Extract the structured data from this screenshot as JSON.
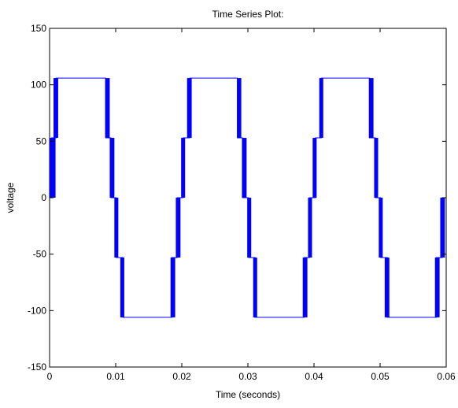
{
  "chart_data": {
    "type": "line",
    "title": "Time Series Plot:",
    "xlabel": "Time (seconds)",
    "ylabel": "voltage",
    "xlim": [
      0,
      0.06
    ],
    "ylim": [
      -150,
      150
    ],
    "xticks": [
      0,
      0.01,
      0.02,
      0.03,
      0.04,
      0.05,
      0.06
    ],
    "xtick_labels": [
      "0",
      "0.01",
      "0.02",
      "0.03",
      "0.04",
      "0.05",
      "0.06"
    ],
    "yticks": [
      -150,
      -100,
      -50,
      0,
      50,
      100,
      150
    ],
    "ytick_labels": [
      "-150",
      "-100",
      "-50",
      "0",
      "50",
      "100",
      "150"
    ],
    "grid": false,
    "line_color": "#0000ff",
    "series": [
      {
        "name": "",
        "x": [
          0,
          0.0003,
          0.0003,
          0.001,
          0.001,
          0.0085,
          0.0085,
          0.0093,
          0.0093,
          0.0101,
          0.0101,
          0.0111,
          0.0111,
          0.0185,
          0.0185,
          0.0193,
          0.0193,
          0.0202,
          0.0202,
          0.0212,
          0.0212,
          0.0284,
          0.0284,
          0.0292,
          0.0292,
          0.0301,
          0.0301,
          0.0311,
          0.0311,
          0.0385,
          0.0385,
          0.0393,
          0.0393,
          0.0402,
          0.0402,
          0.0411,
          0.0411,
          0.0484,
          0.0484,
          0.0493,
          0.0493,
          0.0501,
          0.0501,
          0.0511,
          0.0511,
          0.0585,
          0.0585,
          0.0594,
          0.0594,
          0.06
        ],
        "y": [
          0,
          0,
          53,
          53,
          106,
          106,
          53,
          53,
          0,
          0,
          -53,
          -53,
          -106,
          -106,
          -53,
          -53,
          0,
          0,
          53,
          53,
          106,
          106,
          53,
          53,
          0,
          0,
          -53,
          -53,
          -106,
          -106,
          -53,
          -53,
          0,
          0,
          53,
          53,
          106,
          106,
          53,
          53,
          0,
          0,
          -53,
          -53,
          -106,
          -106,
          -53,
          -53,
          0,
          0
        ]
      }
    ],
    "switching_bands": [
      {
        "t0": 0.0,
        "t1": 0.0009,
        "v0": 0,
        "v1": 53
      },
      {
        "t0": 0.0006,
        "t1": 0.0013,
        "v0": 53,
        "v1": 106
      },
      {
        "t0": 0.0084,
        "t1": 0.0091,
        "v0": 106,
        "v1": 53
      },
      {
        "t0": 0.0091,
        "t1": 0.0098,
        "v0": 53,
        "v1": 0
      },
      {
        "t0": 0.0098,
        "t1": 0.0104,
        "v0": 0,
        "v1": -53
      },
      {
        "t0": 0.0107,
        "t1": 0.0113,
        "v0": -53,
        "v1": -106
      },
      {
        "t0": 0.0183,
        "t1": 0.019,
        "v0": -106,
        "v1": -53
      },
      {
        "t0": 0.0191,
        "t1": 0.0198,
        "v0": -53,
        "v1": 0
      },
      {
        "t0": 0.0199,
        "t1": 0.0205,
        "v0": 0,
        "v1": 53
      },
      {
        "t0": 0.0208,
        "t1": 0.0215,
        "v0": 53,
        "v1": 106
      },
      {
        "t0": 0.0284,
        "t1": 0.029,
        "v0": 106,
        "v1": 53
      },
      {
        "t0": 0.0291,
        "t1": 0.0298,
        "v0": 53,
        "v1": 0
      },
      {
        "t0": 0.0299,
        "t1": 0.0305,
        "v0": 0,
        "v1": -53
      },
      {
        "t0": 0.0308,
        "t1": 0.0314,
        "v0": -53,
        "v1": -106
      },
      {
        "t0": 0.0383,
        "t1": 0.039,
        "v0": -106,
        "v1": -53
      },
      {
        "t0": 0.0391,
        "t1": 0.0397,
        "v0": -53,
        "v1": 0
      },
      {
        "t0": 0.0398,
        "t1": 0.0404,
        "v0": 0,
        "v1": 53
      },
      {
        "t0": 0.0408,
        "t1": 0.0414,
        "v0": 53,
        "v1": 106
      },
      {
        "t0": 0.0483,
        "t1": 0.049,
        "v0": 106,
        "v1": 53
      },
      {
        "t0": 0.0491,
        "t1": 0.0497,
        "v0": 53,
        "v1": 0
      },
      {
        "t0": 0.0498,
        "t1": 0.0504,
        "v0": 0,
        "v1": -53
      },
      {
        "t0": 0.0507,
        "t1": 0.0514,
        "v0": -53,
        "v1": -106
      },
      {
        "t0": 0.0583,
        "t1": 0.059,
        "v0": -106,
        "v1": -53
      },
      {
        "t0": 0.0591,
        "t1": 0.0598,
        "v0": -53,
        "v1": 0
      }
    ]
  }
}
